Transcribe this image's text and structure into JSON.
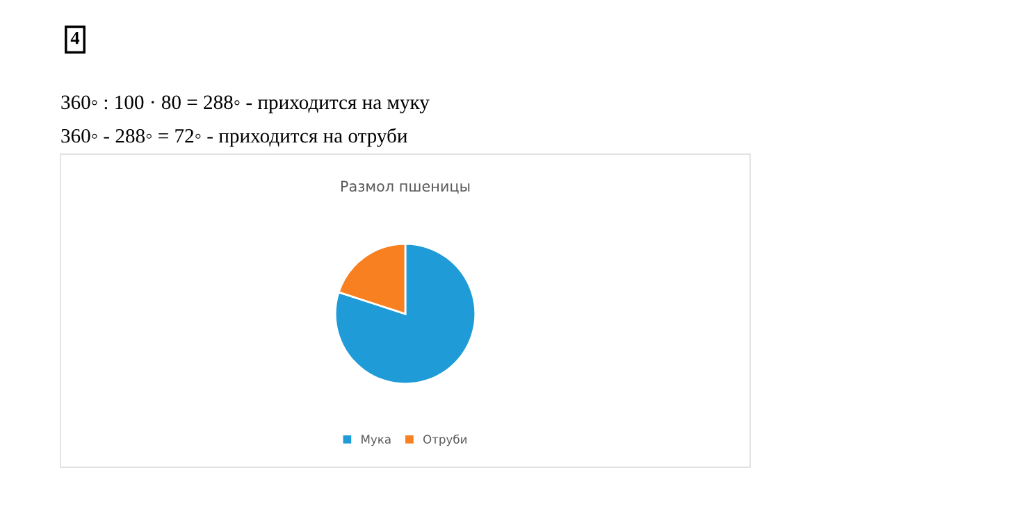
{
  "chart_data": {
    "type": "pie",
    "title": "Размол пшеницы",
    "categories": [
      "Мука",
      "Отруби"
    ],
    "values": [
      80,
      20
    ],
    "colors": [
      "#1f9bd7",
      "#f98020"
    ],
    "legend": "bottom",
    "annotations": [
      "4",
      "360◦ : 100 · 80 = 288◦ - приходится на муку",
      "360◦ - 288◦ = 72◦ - приходится на отруби"
    ]
  }
}
